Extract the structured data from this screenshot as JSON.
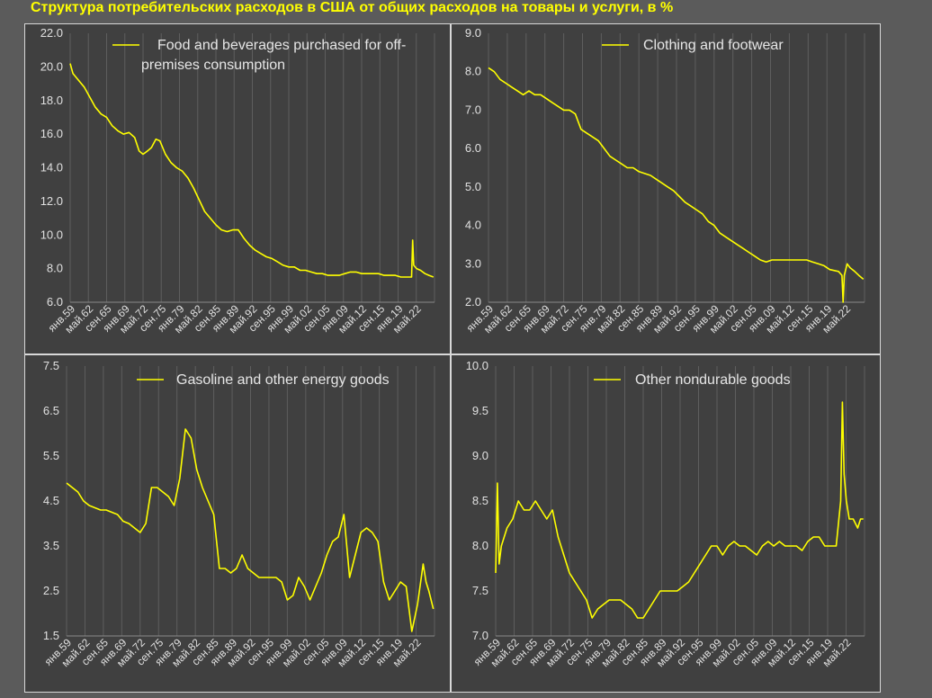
{
  "title": "Структура потребительских расходов в США от общих расходов на товары и услуги, в %",
  "colors": {
    "line": "#ffff00",
    "panel_bg": "#404040",
    "page_bg": "#5b5b5b",
    "grid": "#5e5e5e"
  },
  "x_ticks": [
    "янв.59",
    "май.62",
    "сен.65",
    "янв.69",
    "май.72",
    "сен.75",
    "янв.79",
    "май.82",
    "сен.85",
    "янв.89",
    "май.92",
    "сен.95",
    "янв.99",
    "май.02",
    "сен.05",
    "янв.09",
    "май.12",
    "сен.15",
    "янв.19",
    "май.22"
  ],
  "chart_data": [
    {
      "type": "line",
      "legend": [
        "Food and beverages purchased for off-",
        "premises consumption"
      ],
      "yticks": [
        "6.0",
        "8.0",
        "10.0",
        "12.0",
        "14.0",
        "16.0",
        "18.0",
        "20.0",
        "22.0"
      ],
      "ylim": [
        6,
        22
      ],
      "x_year_range": [
        1959,
        2024
      ],
      "points": [
        [
          1959,
          20.2
        ],
        [
          1959.5,
          19.6
        ],
        [
          1960.5,
          19.2
        ],
        [
          1961.5,
          18.8
        ],
        [
          1962.5,
          18.2
        ],
        [
          1963.5,
          17.6
        ],
        [
          1964.5,
          17.2
        ],
        [
          1965.5,
          17.0
        ],
        [
          1966.5,
          16.5
        ],
        [
          1967.5,
          16.2
        ],
        [
          1968.5,
          16.0
        ],
        [
          1969.5,
          16.1
        ],
        [
          1970.5,
          15.8
        ],
        [
          1971.3,
          15.0
        ],
        [
          1972,
          14.8
        ],
        [
          1972.8,
          15.0
        ],
        [
          1973.5,
          15.2
        ],
        [
          1974.3,
          15.7
        ],
        [
          1975,
          15.6
        ],
        [
          1976,
          14.8
        ],
        [
          1977,
          14.3
        ],
        [
          1978,
          14.0
        ],
        [
          1979,
          13.8
        ],
        [
          1980,
          13.4
        ],
        [
          1981,
          12.8
        ],
        [
          1982,
          12.1
        ],
        [
          1983,
          11.4
        ],
        [
          1984,
          11.0
        ],
        [
          1985,
          10.6
        ],
        [
          1986,
          10.3
        ],
        [
          1987,
          10.2
        ],
        [
          1988,
          10.3
        ],
        [
          1989,
          10.3
        ],
        [
          1990,
          9.8
        ],
        [
          1991,
          9.4
        ],
        [
          1992,
          9.1
        ],
        [
          1993,
          8.9
        ],
        [
          1994,
          8.7
        ],
        [
          1995,
          8.6
        ],
        [
          1996,
          8.4
        ],
        [
          1997,
          8.2
        ],
        [
          1998,
          8.1
        ],
        [
          1999,
          8.1
        ],
        [
          2000,
          7.9
        ],
        [
          2001,
          7.9
        ],
        [
          2002,
          7.8
        ],
        [
          2003,
          7.7
        ],
        [
          2004,
          7.7
        ],
        [
          2005,
          7.6
        ],
        [
          2006,
          7.6
        ],
        [
          2007,
          7.6
        ],
        [
          2008,
          7.7
        ],
        [
          2009,
          7.8
        ],
        [
          2010,
          7.8
        ],
        [
          2011,
          7.7
        ],
        [
          2012,
          7.7
        ],
        [
          2013,
          7.7
        ],
        [
          2014,
          7.7
        ],
        [
          2015,
          7.6
        ],
        [
          2016,
          7.6
        ],
        [
          2017,
          7.6
        ],
        [
          2018,
          7.5
        ],
        [
          2019,
          7.5
        ],
        [
          2019.9,
          7.5
        ],
        [
          2020.1,
          9.7
        ],
        [
          2020.3,
          8.2
        ],
        [
          2020.8,
          8.0
        ],
        [
          2021.5,
          7.9
        ],
        [
          2022.3,
          7.7
        ],
        [
          2023,
          7.6
        ],
        [
          2023.8,
          7.5
        ]
      ]
    },
    {
      "type": "line",
      "legend": [
        "Clothing and footwear"
      ],
      "yticks": [
        "2.0",
        "3.0",
        "4.0",
        "5.0",
        "6.0",
        "7.0",
        "8.0",
        "9.0"
      ],
      "ylim": [
        2,
        9
      ],
      "x_year_range": [
        1959,
        2024
      ],
      "points": [
        [
          1959,
          8.1
        ],
        [
          1960,
          8.0
        ],
        [
          1961,
          7.8
        ],
        [
          1962,
          7.7
        ],
        [
          1963,
          7.6
        ],
        [
          1964,
          7.5
        ],
        [
          1965,
          7.4
        ],
        [
          1966,
          7.5
        ],
        [
          1967,
          7.4
        ],
        [
          1968,
          7.4
        ],
        [
          1969,
          7.3
        ],
        [
          1970,
          7.2
        ],
        [
          1971,
          7.1
        ],
        [
          1972,
          7.0
        ],
        [
          1973,
          7.0
        ],
        [
          1974,
          6.9
        ],
        [
          1975,
          6.5
        ],
        [
          1976,
          6.4
        ],
        [
          1977,
          6.3
        ],
        [
          1978,
          6.2
        ],
        [
          1979,
          6.0
        ],
        [
          1980,
          5.8
        ],
        [
          1981,
          5.7
        ],
        [
          1982,
          5.6
        ],
        [
          1983,
          5.5
        ],
        [
          1984,
          5.5
        ],
        [
          1985,
          5.4
        ],
        [
          1986,
          5.35
        ],
        [
          1987,
          5.3
        ],
        [
          1988,
          5.2
        ],
        [
          1989,
          5.1
        ],
        [
          1990,
          5.0
        ],
        [
          1991,
          4.9
        ],
        [
          1992,
          4.75
        ],
        [
          1993,
          4.6
        ],
        [
          1994,
          4.5
        ],
        [
          1995,
          4.4
        ],
        [
          1996,
          4.3
        ],
        [
          1997,
          4.1
        ],
        [
          1998,
          4.0
        ],
        [
          1999,
          3.8
        ],
        [
          2000,
          3.7
        ],
        [
          2001,
          3.6
        ],
        [
          2002,
          3.5
        ],
        [
          2003,
          3.4
        ],
        [
          2004,
          3.3
        ],
        [
          2005,
          3.2
        ],
        [
          2006,
          3.1
        ],
        [
          2007,
          3.05
        ],
        [
          2008,
          3.1
        ],
        [
          2009,
          3.1
        ],
        [
          2010,
          3.1
        ],
        [
          2011,
          3.1
        ],
        [
          2012,
          3.1
        ],
        [
          2013,
          3.1
        ],
        [
          2014,
          3.1
        ],
        [
          2015,
          3.05
        ],
        [
          2016,
          3.0
        ],
        [
          2017,
          2.95
        ],
        [
          2018,
          2.85
        ],
        [
          2019.5,
          2.8
        ],
        [
          2020.1,
          2.7
        ],
        [
          2020.3,
          2.0
        ],
        [
          2020.5,
          2.7
        ],
        [
          2021,
          3.0
        ],
        [
          2021.5,
          2.9
        ],
        [
          2022.3,
          2.8
        ],
        [
          2023,
          2.7
        ],
        [
          2023.8,
          2.6
        ]
      ]
    },
    {
      "type": "line",
      "legend": [
        "Gasoline and other energy goods"
      ],
      "yticks": [
        "1.5",
        "2.5",
        "3.5",
        "4.5",
        "5.5",
        "6.5",
        "7.5"
      ],
      "ylim": [
        1.5,
        7.5
      ],
      "x_year_range": [
        1959,
        2024
      ],
      "points": [
        [
          1959,
          4.9
        ],
        [
          1960,
          4.8
        ],
        [
          1961,
          4.7
        ],
        [
          1962,
          4.5
        ],
        [
          1963,
          4.4
        ],
        [
          1964,
          4.35
        ],
        [
          1965,
          4.3
        ],
        [
          1966,
          4.3
        ],
        [
          1967,
          4.25
        ],
        [
          1968,
          4.2
        ],
        [
          1969,
          4.05
        ],
        [
          1970,
          4.0
        ],
        [
          1971,
          3.9
        ],
        [
          1972,
          3.8
        ],
        [
          1973,
          4.0
        ],
        [
          1974,
          4.8
        ],
        [
          1975,
          4.8
        ],
        [
          1976,
          4.7
        ],
        [
          1977,
          4.6
        ],
        [
          1978,
          4.4
        ],
        [
          1979,
          5.0
        ],
        [
          1980,
          6.1
        ],
        [
          1981,
          5.9
        ],
        [
          1982,
          5.2
        ],
        [
          1983,
          4.8
        ],
        [
          1984,
          4.5
        ],
        [
          1985,
          4.2
        ],
        [
          1986,
          3.0
        ],
        [
          1987,
          3.0
        ],
        [
          1988,
          2.9
        ],
        [
          1989,
          3.0
        ],
        [
          1990,
          3.3
        ],
        [
          1991,
          3.0
        ],
        [
          1992,
          2.9
        ],
        [
          1993,
          2.8
        ],
        [
          1994,
          2.8
        ],
        [
          1995,
          2.8
        ],
        [
          1996,
          2.8
        ],
        [
          1997,
          2.7
        ],
        [
          1998,
          2.3
        ],
        [
          1999,
          2.4
        ],
        [
          2000,
          2.8
        ],
        [
          2001,
          2.6
        ],
        [
          2002,
          2.3
        ],
        [
          2003,
          2.6
        ],
        [
          2004,
          2.9
        ],
        [
          2005,
          3.3
        ],
        [
          2006,
          3.6
        ],
        [
          2007,
          3.7
        ],
        [
          2008,
          4.2
        ],
        [
          2009,
          2.8
        ],
        [
          2010,
          3.3
        ],
        [
          2011,
          3.8
        ],
        [
          2012,
          3.9
        ],
        [
          2013,
          3.8
        ],
        [
          2014,
          3.6
        ],
        [
          2015,
          2.7
        ],
        [
          2016,
          2.3
        ],
        [
          2017,
          2.5
        ],
        [
          2018,
          2.7
        ],
        [
          2019,
          2.6
        ],
        [
          2020,
          1.6
        ],
        [
          2021,
          2.2
        ],
        [
          2022,
          3.1
        ],
        [
          2022.5,
          2.7
        ],
        [
          2023,
          2.5
        ],
        [
          2023.8,
          2.1
        ]
      ]
    },
    {
      "type": "line",
      "legend": [
        "Other nondurable goods"
      ],
      "yticks": [
        "7.0",
        "7.5",
        "8.0",
        "8.5",
        "9.0",
        "9.5",
        "10.0"
      ],
      "ylim": [
        7,
        10
      ],
      "x_year_range": [
        1959,
        2024
      ],
      "points": [
        [
          1959,
          7.7
        ],
        [
          1959.3,
          8.7
        ],
        [
          1959.6,
          7.8
        ],
        [
          1960,
          8.0
        ],
        [
          1961,
          8.2
        ],
        [
          1962,
          8.3
        ],
        [
          1963,
          8.5
        ],
        [
          1964,
          8.4
        ],
        [
          1965,
          8.4
        ],
        [
          1966,
          8.5
        ],
        [
          1967,
          8.4
        ],
        [
          1968,
          8.3
        ],
        [
          1969,
          8.4
        ],
        [
          1970,
          8.1
        ],
        [
          1971,
          7.9
        ],
        [
          1972,
          7.7
        ],
        [
          1973,
          7.6
        ],
        [
          1974,
          7.5
        ],
        [
          1975,
          7.4
        ],
        [
          1976,
          7.2
        ],
        [
          1977,
          7.3
        ],
        [
          1978,
          7.35
        ],
        [
          1979,
          7.4
        ],
        [
          1980,
          7.4
        ],
        [
          1981,
          7.4
        ],
        [
          1982,
          7.35
        ],
        [
          1983,
          7.3
        ],
        [
          1984,
          7.2
        ],
        [
          1985,
          7.2
        ],
        [
          1986,
          7.3
        ],
        [
          1987,
          7.4
        ],
        [
          1988,
          7.5
        ],
        [
          1989,
          7.5
        ],
        [
          1990,
          7.5
        ],
        [
          1991,
          7.5
        ],
        [
          1992,
          7.55
        ],
        [
          1993,
          7.6
        ],
        [
          1994,
          7.7
        ],
        [
          1995,
          7.8
        ],
        [
          1996,
          7.9
        ],
        [
          1997,
          8.0
        ],
        [
          1998,
          8.0
        ],
        [
          1999,
          7.9
        ],
        [
          2000,
          8.0
        ],
        [
          2001,
          8.05
        ],
        [
          2002,
          8.0
        ],
        [
          2003,
          8.0
        ],
        [
          2004,
          7.95
        ],
        [
          2005,
          7.9
        ],
        [
          2006,
          8.0
        ],
        [
          2007,
          8.05
        ],
        [
          2008,
          8.0
        ],
        [
          2009,
          8.05
        ],
        [
          2010,
          8.0
        ],
        [
          2011,
          8.0
        ],
        [
          2012,
          8.0
        ],
        [
          2013,
          7.95
        ],
        [
          2014,
          8.05
        ],
        [
          2015,
          8.1
        ],
        [
          2016,
          8.1
        ],
        [
          2017,
          8.0
        ],
        [
          2018,
          8.0
        ],
        [
          2019,
          8.0
        ],
        [
          2019.8,
          8.5
        ],
        [
          2020.1,
          9.6
        ],
        [
          2020.4,
          8.8
        ],
        [
          2020.8,
          8.5
        ],
        [
          2021.3,
          8.3
        ],
        [
          2022,
          8.3
        ],
        [
          2022.8,
          8.2
        ],
        [
          2023.3,
          8.3
        ],
        [
          2023.8,
          8.3
        ]
      ]
    }
  ]
}
